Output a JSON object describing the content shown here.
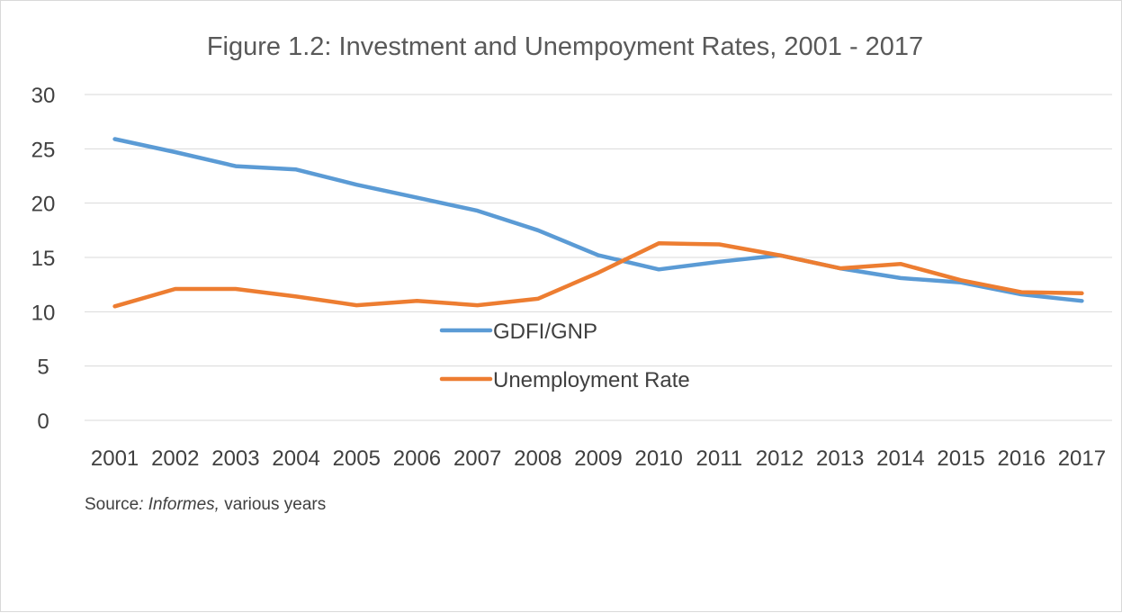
{
  "chart_data": {
    "type": "line",
    "title": "Figure 1.2: Investment and Unempoyment Rates, 2001 - 2017",
    "xlabel": "",
    "ylabel": "",
    "categories": [
      "2001",
      "2002",
      "2003",
      "2004",
      "2005",
      "2006",
      "2007",
      "2008",
      "2009",
      "2010",
      "2011",
      "2012",
      "2013",
      "2014",
      "2015",
      "2016",
      "2017"
    ],
    "y_ticks": [
      "0",
      "5",
      "10",
      "15",
      "20",
      "25",
      "30"
    ],
    "ylim": [
      0,
      30
    ],
    "grid": true,
    "legend_position": "inside-center",
    "series": [
      {
        "name": "GDFI/GNP",
        "color": "#5b9bd5",
        "values": [
          25.9,
          24.7,
          23.4,
          23.1,
          21.7,
          20.5,
          19.3,
          17.5,
          15.2,
          13.9,
          14.6,
          15.2,
          14.0,
          13.1,
          12.7,
          11.6,
          11.0
        ]
      },
      {
        "name": "Unemployment Rate",
        "color": "#ed7d31",
        "values": [
          10.5,
          12.1,
          12.1,
          11.4,
          10.6,
          11.0,
          10.6,
          11.2,
          13.6,
          16.3,
          16.2,
          15.2,
          14.0,
          14.4,
          12.9,
          11.8,
          11.7
        ]
      }
    ]
  },
  "source": {
    "prefix": "Source",
    "colon": ":",
    "italic": " Informes,",
    "suffix": " various years"
  }
}
